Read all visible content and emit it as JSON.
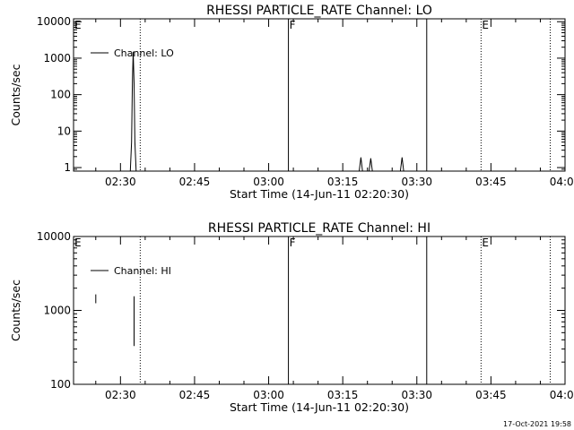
{
  "footer": {
    "timestamp": "17-Oct-2021 19:58"
  },
  "chart_data": [
    {
      "type": "line",
      "title": "RHESSI PARTICLE_RATE Channel: LO",
      "xlabel": "Start Time (14-Jun-11 02:20:30)",
      "ylabel": "Counts/sec",
      "yscale": "log",
      "ylim": [
        0.8,
        12000
      ],
      "yticks": [
        {
          "value": 1,
          "label": "1"
        },
        {
          "value": 10,
          "label": "10"
        },
        {
          "value": 100,
          "label": "100"
        },
        {
          "value": 1000,
          "label": "1000"
        },
        {
          "value": 10000,
          "label": "10000"
        }
      ],
      "xlim": [
        "02:20:30",
        "04:00:00"
      ],
      "xticks": [
        "02:30",
        "02:45",
        "03:00",
        "03:15",
        "03:30",
        "03:45",
        "04:00"
      ],
      "legend": {
        "position": "top-left",
        "entries": [
          "Channel: LO"
        ]
      },
      "series": [
        {
          "name": "Channel: LO",
          "x": [
            "02:32:00",
            "02:32:15",
            "02:32:25",
            "02:32:35",
            "02:32:45",
            "02:32:55",
            "02:33:10",
            "02:33:30",
            "03:18:20",
            "03:18:40",
            "03:19:00",
            "03:20:20",
            "03:20:40",
            "03:21:00",
            "03:26:40",
            "03:27:00",
            "03:27:20"
          ],
          "y": [
            0.8,
            5,
            200,
            1500,
            200,
            5,
            0.8,
            0.8,
            0.8,
            1.9,
            0.8,
            0.8,
            1.8,
            0.8,
            0.8,
            1.9,
            0.8
          ]
        }
      ],
      "vlines": [
        {
          "x": "02:34:00",
          "style": "dotted"
        },
        {
          "x": "03:04:00",
          "style": "solid",
          "label": "F"
        },
        {
          "x": "03:32:00",
          "style": "solid"
        },
        {
          "x": "03:43:00",
          "style": "dotted",
          "label": "E"
        },
        {
          "x": "03:57:00",
          "style": "dotted"
        }
      ],
      "edge_label": "E"
    },
    {
      "type": "line",
      "title": "RHESSI PARTICLE_RATE Channel: HI",
      "xlabel": "Start Time (14-Jun-11 02:20:30)",
      "ylabel": "Counts/sec",
      "yscale": "log",
      "ylim": [
        100,
        10000
      ],
      "yticks": [
        {
          "value": 100,
          "label": "100"
        },
        {
          "value": 1000,
          "label": "1000"
        },
        {
          "value": 10000,
          "label": "10000"
        }
      ],
      "xlim": [
        "02:20:30",
        "04:00:00"
      ],
      "xticks": [
        "02:30",
        "02:45",
        "03:00",
        "03:15",
        "03:30",
        "03:45",
        "04:00"
      ],
      "legend": {
        "position": "top-left",
        "entries": [
          "Channel: HI"
        ]
      },
      "series": [
        {
          "name": "Channel: HI",
          "x": [
            "02:25:00",
            "02:25:00"
          ],
          "y": [
            1250,
            1650
          ]
        },
        {
          "name": "",
          "x": [
            "02:32:45",
            "02:32:45"
          ],
          "y": [
            330,
            1550
          ]
        }
      ],
      "vlines": [
        {
          "x": "02:34:00",
          "style": "dotted"
        },
        {
          "x": "03:04:00",
          "style": "solid",
          "label": "F"
        },
        {
          "x": "03:32:00",
          "style": "solid"
        },
        {
          "x": "03:43:00",
          "style": "dotted",
          "label": "E"
        },
        {
          "x": "03:57:00",
          "style": "dotted"
        }
      ],
      "edge_label": "E"
    }
  ]
}
